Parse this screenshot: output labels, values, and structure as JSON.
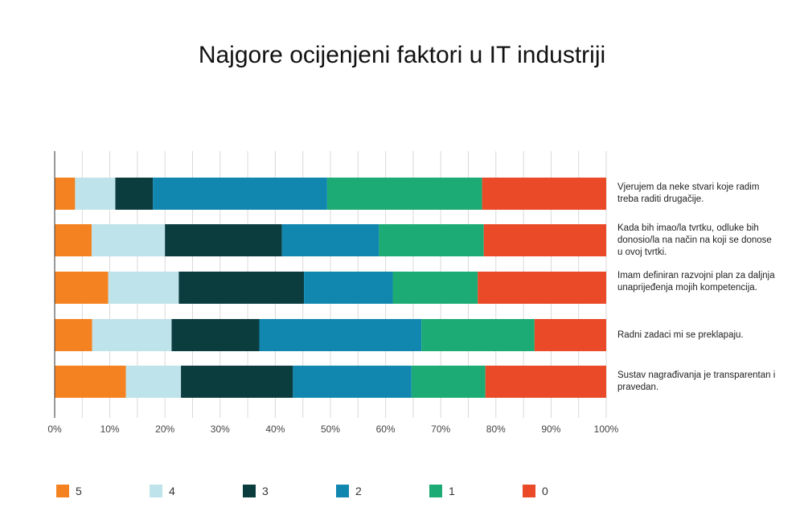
{
  "chart_data": {
    "type": "bar",
    "orientation": "horizontal",
    "stacked": "100%",
    "title": "Najgore ocijenjeni faktori u IT industriji",
    "categories": [
      "Vjerujem da neke stvari koje radim treba raditi drugačije.",
      "Kada bih imao/la tvrtku, odluke bih donosio/la na način na koji se donose u ovoj tvrtki.",
      "Imam definiran razvojni plan za daljnja unaprijeđenja mojih kompetencija.",
      "Radni zadaci mi se preklapaju.",
      "Sustav nagrađivanja je transparentan i pravedan."
    ],
    "series": [
      {
        "name": "5",
        "color": "#f58220",
        "values": [
          3.7,
          6.7,
          9.7,
          6.8,
          12.9
        ]
      },
      {
        "name": "4",
        "color": "#bfe3ea",
        "values": [
          7.3,
          13.3,
          12.8,
          14.4,
          10.0
        ]
      },
      {
        "name": "3",
        "color": "#0b3d3f",
        "values": [
          6.8,
          21.2,
          22.7,
          15.9,
          20.3
        ]
      },
      {
        "name": "2",
        "color": "#1187b0",
        "values": [
          31.6,
          17.6,
          16.1,
          29.4,
          21.5
        ]
      },
      {
        "name": "1",
        "color": "#1cab74",
        "values": [
          28.1,
          19.0,
          15.4,
          20.5,
          13.4
        ]
      },
      {
        "name": "0",
        "color": "#ea4a27",
        "values": [
          22.5,
          22.2,
          23.3,
          13.0,
          21.9
        ]
      }
    ],
    "xlim": [
      0,
      100
    ],
    "xticks": [
      "0%",
      "10%",
      "20%",
      "30%",
      "40%",
      "50%",
      "60%",
      "70%",
      "80%",
      "90%",
      "100%"
    ],
    "grid": "vertical",
    "legend_position": "bottom-left"
  }
}
